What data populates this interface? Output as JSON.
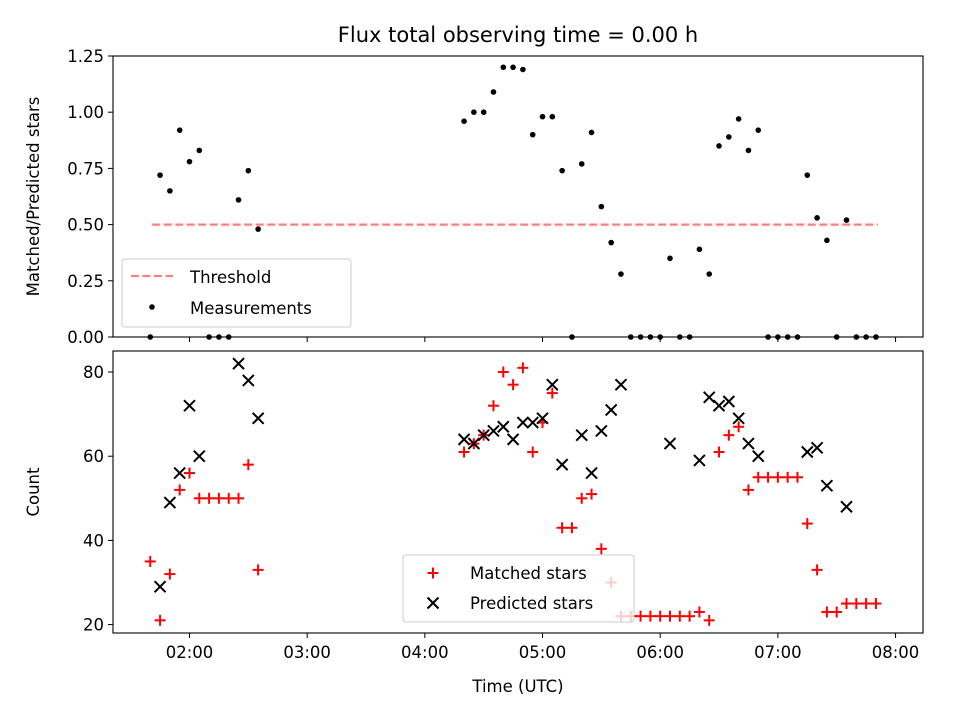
{
  "figure": {
    "title": "Flux total observing time = 0.00 h"
  },
  "chart_data": [
    {
      "type": "scatter",
      "ylabel": "Matched/Predicted stars",
      "ylim": [
        0,
        1.25
      ],
      "yticks": [
        "0.00",
        "0.25",
        "0.50",
        "0.75",
        "1.00",
        "1.25"
      ],
      "xlim": [
        "01:21",
        "08:14"
      ],
      "legend": {
        "placement": "lower-left",
        "entries": [
          "Threshold",
          "Measurements"
        ]
      },
      "threshold": {
        "name": "Threshold",
        "value": 0.5,
        "x": [
          "01:41",
          "07:51"
        ],
        "color": "#ff7f7f",
        "style": "dashed"
      },
      "series": [
        {
          "name": "Measurements",
          "color": "#000000",
          "marker": "dot",
          "points": [
            [
              "01:40",
              0.0
            ],
            [
              "01:45",
              0.72
            ],
            [
              "01:50",
              0.65
            ],
            [
              "01:55",
              0.92
            ],
            [
              "02:00",
              0.78
            ],
            [
              "02:05",
              0.83
            ],
            [
              "02:10",
              0.0
            ],
            [
              "02:15",
              0.0
            ],
            [
              "02:20",
              0.0
            ],
            [
              "02:25",
              0.61
            ],
            [
              "02:30",
              0.74
            ],
            [
              "02:35",
              0.48
            ],
            [
              "04:20",
              0.96
            ],
            [
              "04:25",
              1.0
            ],
            [
              "04:30",
              1.0
            ],
            [
              "04:35",
              1.09
            ],
            [
              "04:40",
              1.2
            ],
            [
              "04:45",
              1.2
            ],
            [
              "04:50",
              1.19
            ],
            [
              "04:55",
              0.9
            ],
            [
              "05:00",
              0.98
            ],
            [
              "05:05",
              0.98
            ],
            [
              "05:10",
              0.74
            ],
            [
              "05:15",
              0.0
            ],
            [
              "05:20",
              0.77
            ],
            [
              "05:25",
              0.91
            ],
            [
              "05:30",
              0.58
            ],
            [
              "05:35",
              0.42
            ],
            [
              "05:40",
              0.28
            ],
            [
              "05:45",
              0.0
            ],
            [
              "05:50",
              0.0
            ],
            [
              "05:55",
              0.0
            ],
            [
              "06:00",
              0.0
            ],
            [
              "06:05",
              0.35
            ],
            [
              "06:10",
              0.0
            ],
            [
              "06:15",
              0.0
            ],
            [
              "06:20",
              0.39
            ],
            [
              "06:25",
              0.28
            ],
            [
              "06:30",
              0.85
            ],
            [
              "06:35",
              0.89
            ],
            [
              "06:40",
              0.97
            ],
            [
              "06:45",
              0.83
            ],
            [
              "06:50",
              0.92
            ],
            [
              "06:55",
              0.0
            ],
            [
              "07:00",
              0.0
            ],
            [
              "07:05",
              0.0
            ],
            [
              "07:10",
              0.0
            ],
            [
              "07:15",
              0.72
            ],
            [
              "07:20",
              0.53
            ],
            [
              "07:25",
              0.43
            ],
            [
              "07:30",
              0.0
            ],
            [
              "07:35",
              0.52
            ],
            [
              "07:40",
              0.0
            ],
            [
              "07:45",
              0.0
            ],
            [
              "07:50",
              0.0
            ]
          ]
        }
      ]
    },
    {
      "type": "scatter",
      "ylabel": "Count",
      "xlabel": "Time (UTC)",
      "ylim": [
        18,
        85
      ],
      "yticks": [
        "20",
        "40",
        "60",
        "80"
      ],
      "xticks": [
        "02:00",
        "03:00",
        "04:00",
        "05:00",
        "06:00",
        "07:00",
        "08:00"
      ],
      "xlim": [
        "01:21",
        "08:14"
      ],
      "legend": {
        "placement": "lower-center",
        "entries": [
          "Matched stars",
          "Predicted stars"
        ]
      },
      "series": [
        {
          "name": "Matched stars",
          "color": "#ff0000",
          "marker": "plus",
          "points": [
            [
              "01:40",
              35
            ],
            [
              "01:45",
              21
            ],
            [
              "01:50",
              32
            ],
            [
              "01:55",
              52
            ],
            [
              "02:00",
              56
            ],
            [
              "02:05",
              50
            ],
            [
              "02:10",
              50
            ],
            [
              "02:15",
              50
            ],
            [
              "02:20",
              50
            ],
            [
              "02:25",
              50
            ],
            [
              "02:30",
              58
            ],
            [
              "02:35",
              33
            ],
            [
              "04:20",
              61
            ],
            [
              "04:25",
              63
            ],
            [
              "04:30",
              65
            ],
            [
              "04:35",
              72
            ],
            [
              "04:40",
              80
            ],
            [
              "04:45",
              77
            ],
            [
              "04:50",
              81
            ],
            [
              "04:55",
              61
            ],
            [
              "05:00",
              68
            ],
            [
              "05:05",
              75
            ],
            [
              "05:10",
              43
            ],
            [
              "05:15",
              43
            ],
            [
              "05:20",
              50
            ],
            [
              "05:25",
              51
            ],
            [
              "05:30",
              38
            ],
            [
              "05:35",
              30
            ],
            [
              "05:40",
              22
            ],
            [
              "05:45",
              22
            ],
            [
              "05:50",
              22
            ],
            [
              "05:55",
              22
            ],
            [
              "06:00",
              22
            ],
            [
              "06:05",
              22
            ],
            [
              "06:10",
              22
            ],
            [
              "06:15",
              22
            ],
            [
              "06:20",
              23
            ],
            [
              "06:25",
              21
            ],
            [
              "06:30",
              61
            ],
            [
              "06:35",
              65
            ],
            [
              "06:40",
              67
            ],
            [
              "06:45",
              52
            ],
            [
              "06:50",
              55
            ],
            [
              "06:55",
              55
            ],
            [
              "07:00",
              55
            ],
            [
              "07:05",
              55
            ],
            [
              "07:10",
              55
            ],
            [
              "07:15",
              44
            ],
            [
              "07:20",
              33
            ],
            [
              "07:25",
              23
            ],
            [
              "07:30",
              23
            ],
            [
              "07:35",
              25
            ],
            [
              "07:40",
              25
            ],
            [
              "07:45",
              25
            ],
            [
              "07:50",
              25
            ]
          ]
        },
        {
          "name": "Predicted stars",
          "color": "#000000",
          "marker": "x",
          "points": [
            [
              "01:45",
              29
            ],
            [
              "01:50",
              49
            ],
            [
              "01:55",
              56
            ],
            [
              "02:00",
              72
            ],
            [
              "02:05",
              60
            ],
            [
              "02:25",
              82
            ],
            [
              "02:30",
              78
            ],
            [
              "02:35",
              69
            ],
            [
              "04:20",
              64
            ],
            [
              "04:25",
              63
            ],
            [
              "04:30",
              65
            ],
            [
              "04:35",
              66
            ],
            [
              "04:40",
              67
            ],
            [
              "04:45",
              64
            ],
            [
              "04:50",
              68
            ],
            [
              "04:55",
              68
            ],
            [
              "05:00",
              69
            ],
            [
              "05:05",
              77
            ],
            [
              "05:10",
              58
            ],
            [
              "05:20",
              65
            ],
            [
              "05:25",
              56
            ],
            [
              "05:30",
              66
            ],
            [
              "05:35",
              71
            ],
            [
              "05:40",
              77
            ],
            [
              "06:05",
              63
            ],
            [
              "06:20",
              59
            ],
            [
              "06:25",
              74
            ],
            [
              "06:30",
              72
            ],
            [
              "06:35",
              73
            ],
            [
              "06:40",
              69
            ],
            [
              "06:45",
              63
            ],
            [
              "06:50",
              60
            ],
            [
              "07:15",
              61
            ],
            [
              "07:20",
              62
            ],
            [
              "07:25",
              53
            ],
            [
              "07:35",
              48
            ]
          ]
        }
      ]
    }
  ]
}
